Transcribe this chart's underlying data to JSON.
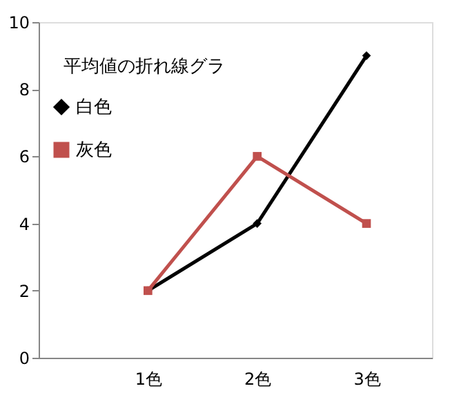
{
  "chart_data": {
    "type": "line",
    "title": "平均値の折れ線グラ",
    "categories": [
      "1色",
      "2色",
      "3色"
    ],
    "series": [
      {
        "name": "白色",
        "color": "#000000",
        "values": [
          2,
          4,
          9
        ],
        "marker": "diamond"
      },
      {
        "name": "灰色",
        "color": "#c0504d",
        "values": [
          2,
          6,
          4
        ],
        "marker": "square"
      }
    ],
    "ylim": [
      0,
      10
    ],
    "yticks": [
      0,
      2,
      4,
      6,
      8,
      10
    ],
    "grid": false,
    "legend": "top left"
  }
}
